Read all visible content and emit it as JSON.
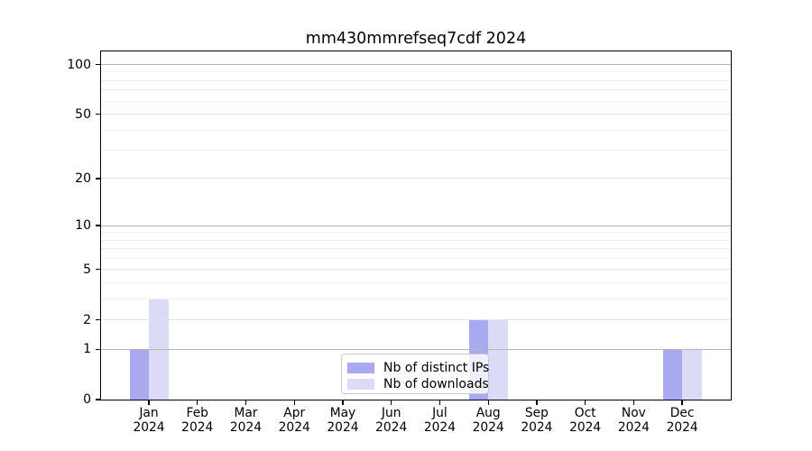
{
  "chart_data": {
    "type": "bar",
    "title": "mm430mmrefseq7cdf 2024",
    "x": {
      "months": [
        "Jan",
        "Feb",
        "Mar",
        "Apr",
        "May",
        "Jun",
        "Jul",
        "Aug",
        "Sep",
        "Oct",
        "Nov",
        "Dec"
      ],
      "year": "2024"
    },
    "series": [
      {
        "name": "Nb of distinct IPs",
        "color": "#a9a9ef",
        "values": [
          1,
          0,
          0,
          0,
          0,
          0,
          0,
          2,
          0,
          0,
          0,
          1
        ]
      },
      {
        "name": "Nb of downloads",
        "color": "#dbdbf8",
        "values": [
          3,
          0,
          0,
          0,
          0,
          0,
          0,
          2,
          0,
          0,
          0,
          1
        ]
      }
    ],
    "y_axis": {
      "scale": "log1p",
      "labeled_ticks": [
        0,
        1,
        2,
        5,
        10,
        20,
        50,
        100
      ],
      "decade_gridlines": [
        1,
        10,
        100
      ],
      "sub_gridlines": [
        2,
        5,
        20,
        50
      ],
      "minor_gridlines": [
        3,
        4,
        6,
        7,
        8,
        9,
        30,
        40,
        60,
        70,
        80,
        90
      ],
      "max": 120,
      "min": 0
    },
    "legend": {
      "position": "lower center"
    },
    "grid": true,
    "style_colors": {
      "decade_grid": "#b5b5b5",
      "sub_grid": "#e4e4e4",
      "minor_grid": "#f0f0f0",
      "axis": "#000000",
      "background": "#ffffff"
    }
  }
}
